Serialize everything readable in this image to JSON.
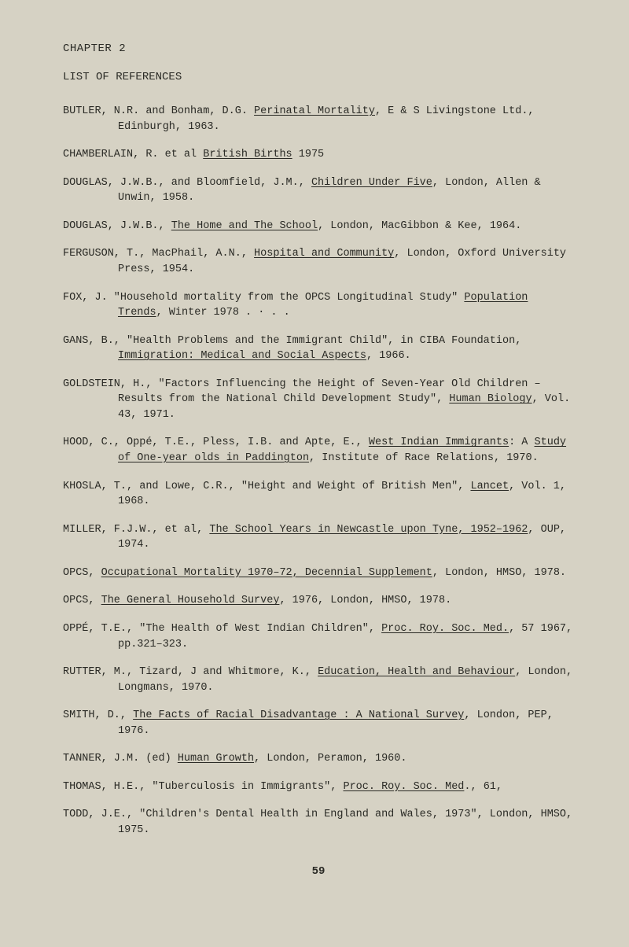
{
  "chapter_heading": "CHAPTER 2",
  "list_heading": "LIST OF REFERENCES",
  "page_number": "59",
  "refs": {
    "butler": {
      "a": "BUTLER, N.R. and Bonham, D.G.  ",
      "u1": "Perinatal Mortality",
      "b": ", E & S Livingstone Ltd., Edinburgh, 1963."
    },
    "chamberlain": {
      "a": "CHAMBERLAIN, R.  et al  ",
      "u1": "British Births",
      "b": "   1975"
    },
    "douglas1": {
      "a": "DOUGLAS, J.W.B., and Bloomfield, J.M., ",
      "u1": "Children Under Five",
      "b": ", London, Allen & Unwin, 1958."
    },
    "douglas2": {
      "a": "DOUGLAS, J.W.B., ",
      "u1": "The Home and The School",
      "b": ", London, MacGibbon & Kee, 1964."
    },
    "ferguson": {
      "a": "FERGUSON, T., MacPhail, A.N., ",
      "u1": "Hospital and Community",
      "b": ", London, Oxford University Press, 1954."
    },
    "fox": {
      "a": "FOX, J.  \"Household mortality from the OPCS Longitudinal Study\" ",
      "u1": "Population Trends",
      "b": ", Winter 1978 . ·         .   ."
    },
    "gans": {
      "a": "GANS, B., \"Health Problems and the Immigrant Child\", in CIBA Foundation, ",
      "u1": "Immigration:  Medical and Social Aspects",
      "b": ", 1966."
    },
    "goldstein": {
      "a": "GOLDSTEIN, H., \"Factors Influencing the Height of Seven-Year Old Children – Results from the National Child Development Study\", ",
      "u1": "Human Biology",
      "b": ", Vol. 43, 1971."
    },
    "hood": {
      "a": "HOOD, C., Oppé, T.E., Pless, I.B. and Apte, E., ",
      "u1": "West Indian Immigrants",
      "b": ":  A ",
      "u2": "Study of One-year olds in Paddington",
      "c": ", Institute of Race Relations, 1970."
    },
    "khosla": {
      "a": "KHOSLA, T., and Lowe, C.R., \"Height and Weight of British Men\", ",
      "u1": "Lancet",
      "b": ", Vol. 1, 1968."
    },
    "miller": {
      "a": "MILLER, F.J.W., et al, ",
      "u1": "The School Years in Newcastle upon Tyne, 1952–1962",
      "b": ", OUP, 1974."
    },
    "opcs1": {
      "a": "OPCS, ",
      "u1": "Occupational Mortality 1970–72, Decennial Supplement",
      "b": ", London, HMSO, 1978."
    },
    "opcs2": {
      "a": "OPCS, ",
      "u1": "The General Household Survey",
      "b": ", 1976, London, HMSO, 1978."
    },
    "oppe": {
      "a": "OPPÉ, T.E., \"The Health of West Indian Children\", ",
      "u1": "Proc. Roy. Soc. Med.",
      "b": ",  57 1967, pp.321–323."
    },
    "rutter": {
      "a": "RUTTER, M., Tizard, J and Whitmore, K., ",
      "u1": "Education, Health and Behaviour",
      "b": ", London, Longmans, 1970."
    },
    "smith": {
      "a": "SMITH, D., ",
      "u1": "The Facts of Racial Disadvantage  :  A National Survey",
      "b": ", London, PEP, 1976."
    },
    "tanner": {
      "a": "TANNER, J.M. (ed) ",
      "u1": "Human Growth",
      "b": ", London, Peramon, 1960."
    },
    "thomas": {
      "a": "THOMAS, H.E., \"Tuberculosis in Immigrants\", ",
      "u1": "Proc. Roy. Soc. Med",
      "b": "., 61,"
    },
    "todd": {
      "a": "TODD, J.E., \"Children's Dental Health in England and Wales, 1973\", London, HMSO, 1975."
    }
  }
}
